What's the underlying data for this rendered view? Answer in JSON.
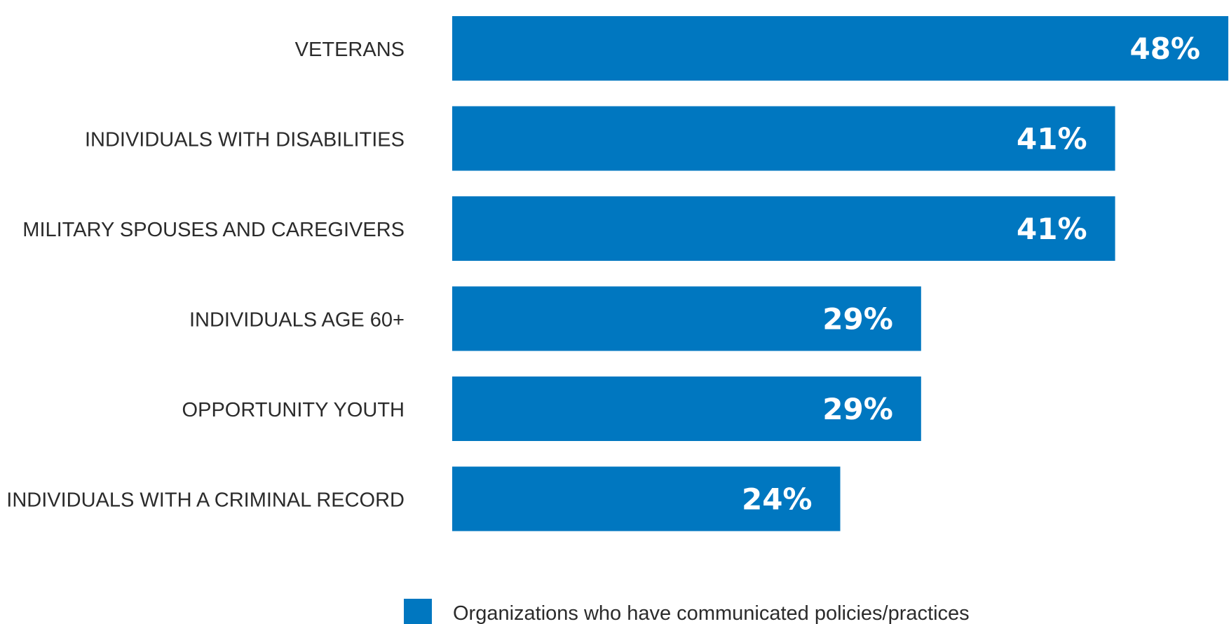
{
  "chart_data": {
    "type": "bar",
    "orientation": "horizontal",
    "categories": [
      "VETERANS",
      "INDIVIDUALS WITH DISABILITIES",
      "MILITARY SPOUSES AND CAREGIVERS",
      "INDIVIDUALS AGE 60+",
      "OPPORTUNITY YOUTH",
      "INDIVIDUALS WITH A CRIMINAL RECORD"
    ],
    "values": [
      48,
      41,
      41,
      29,
      29,
      24
    ],
    "value_labels": [
      "48%",
      "41%",
      "41%",
      "29%",
      "29%",
      "24%"
    ],
    "series": [
      {
        "name": "Organizations who have communicated policies/practices",
        "values": [
          48,
          41,
          41,
          29,
          29,
          24
        ]
      }
    ],
    "xlim": [
      0,
      48
    ],
    "grid": false,
    "legend_position": "bottom",
    "bar_color": "#0077c0"
  }
}
